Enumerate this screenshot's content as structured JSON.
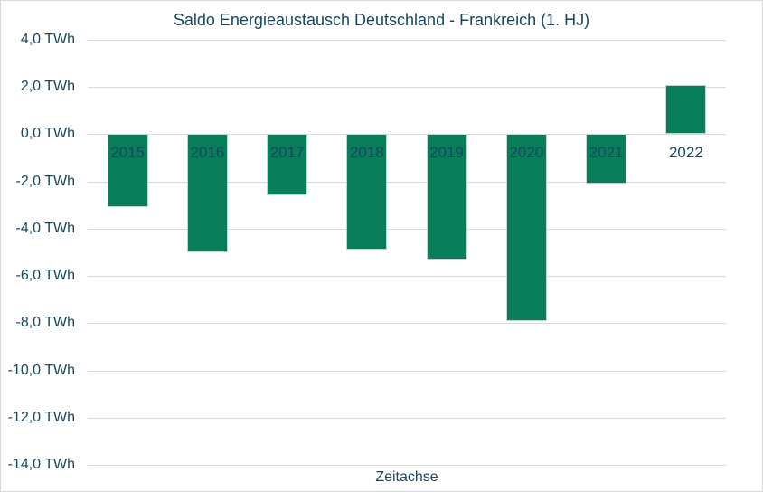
{
  "chart_data": {
    "type": "bar",
    "title": "Saldo Energieaustausch Deutschland - Frankreich (1. HJ)",
    "xlabel": "Zeitachse",
    "ylabel": "",
    "categories": [
      "2015",
      "2016",
      "2017",
      "2018",
      "2019",
      "2020",
      "2021",
      "2022"
    ],
    "values": [
      -3.1,
      -5.0,
      -2.6,
      -4.9,
      -5.3,
      -7.9,
      -2.1,
      2.1
    ],
    "unit": "TWh",
    "ylim": [
      -14,
      4
    ],
    "ytick_step": 2,
    "ytick_values": [
      4,
      2,
      0,
      -2,
      -4,
      -6,
      -8,
      -10,
      -12,
      -14
    ],
    "ytick_labels": [
      "4,0 TWh",
      "2,0 TWh",
      "0,0 TWh",
      "-2,0 TWh",
      "-4,0 TWh",
      "-6,0 TWh",
      "-8,0 TWh",
      "-10,0 TWh",
      "-12,0 TWh",
      "-14,0 TWh"
    ],
    "grid": "horizontal",
    "legend_position": "none",
    "colors": {
      "bar": "#077d59",
      "text": "#17475f",
      "gridline": "#d9d9d9",
      "background": "#ffffff",
      "frame_border": "#d9d9d9"
    }
  }
}
